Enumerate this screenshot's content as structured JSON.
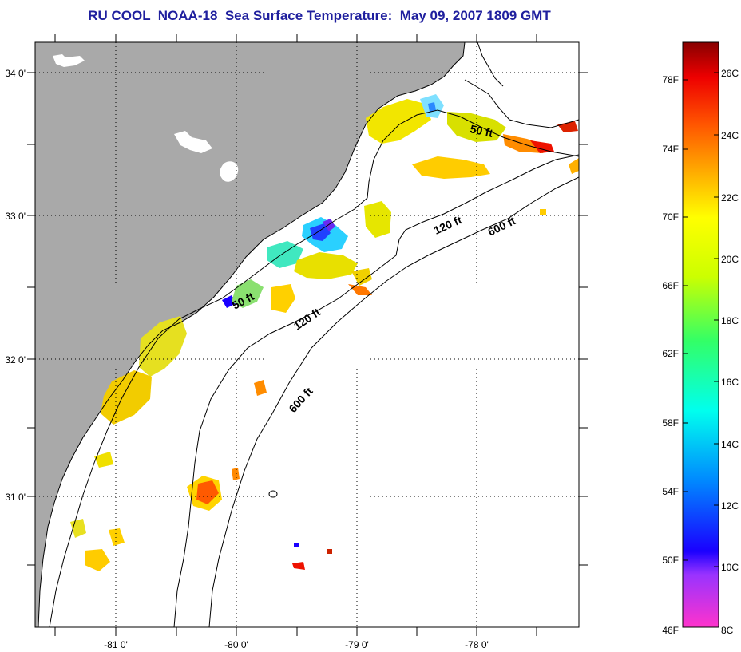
{
  "title": "RU COOL  NOAA-18  Sea Surface Temperature:  May 09, 2007 1809 GMT",
  "colors": {
    "land": "#a9a9a9",
    "ocean": "#ffffff",
    "coastline": "#000000",
    "title": "#1f1f9e"
  },
  "map": {
    "longitude_labels": [
      "-81 0'",
      "-80 0'",
      "-79 0'",
      "-78 0'"
    ],
    "latitude_labels": [
      "34 0'",
      "33 0'",
      "32 0'",
      "31 0'"
    ],
    "gridlines": "dotted"
  },
  "contours": [
    {
      "label": "50 ft"
    },
    {
      "label": "50 ft"
    },
    {
      "label": "120 ft"
    },
    {
      "label": "120 ft"
    },
    {
      "label": "600 ft"
    },
    {
      "label": "600 ft"
    }
  ],
  "colorbar": {
    "fahrenheit_labels": [
      "78F",
      "74F",
      "70F",
      "66F",
      "62F",
      "58F",
      "54F",
      "50F",
      "46F"
    ],
    "celsius_labels": [
      "26C",
      "24C",
      "22C",
      "20C",
      "18C",
      "16C",
      "14C",
      "12C",
      "10C",
      "8C"
    ]
  }
}
